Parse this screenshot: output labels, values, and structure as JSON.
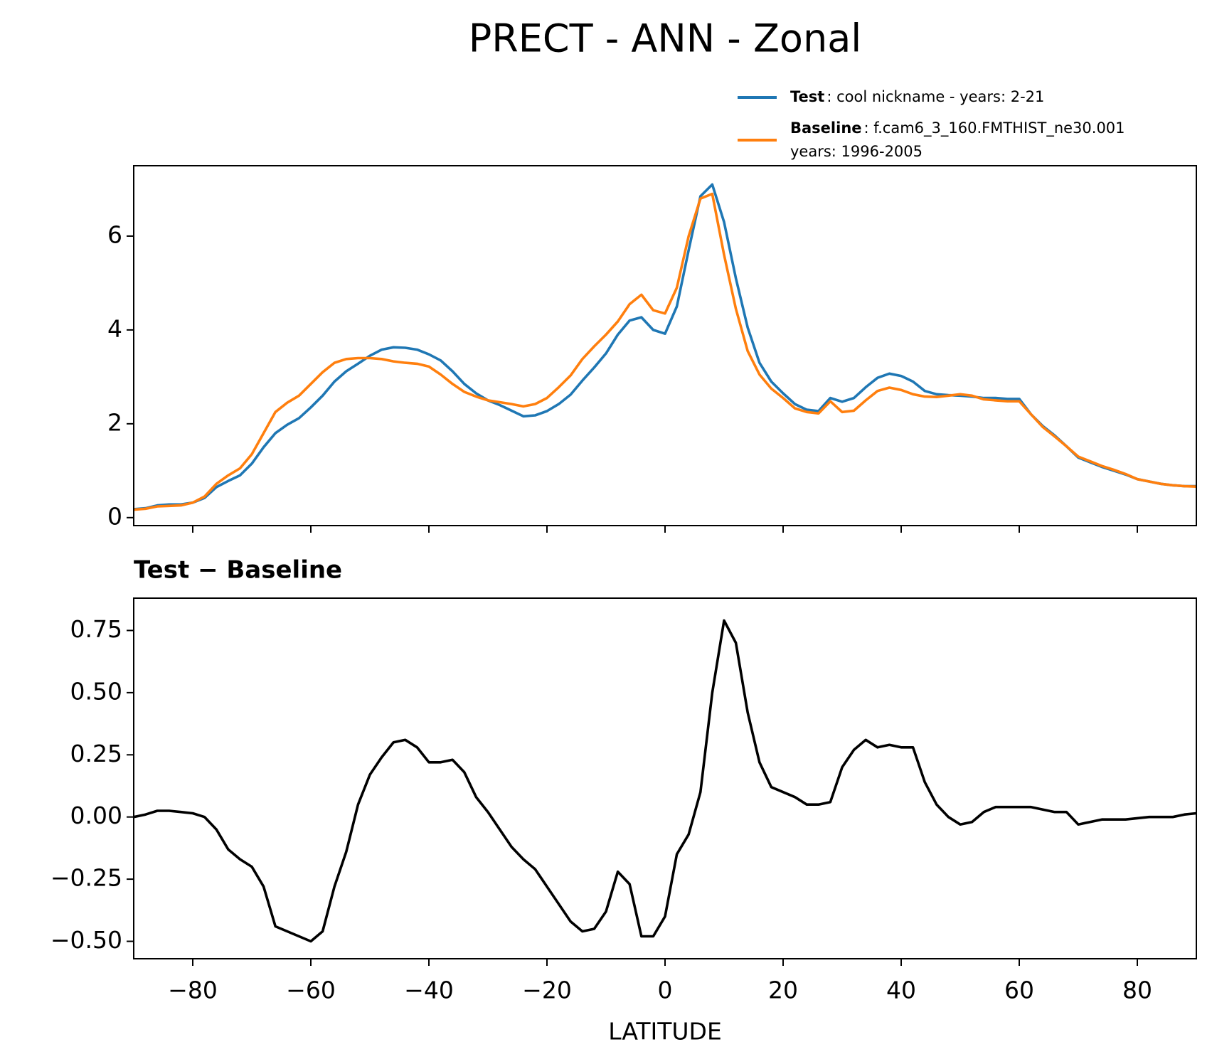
{
  "chart_data": [
    {
      "type": "line",
      "title": "PRECT - ANN - Zonal",
      "x": [
        -90,
        -88,
        -86,
        -84,
        -82,
        -80,
        -78,
        -76,
        -74,
        -72,
        -70,
        -68,
        -66,
        -64,
        -62,
        -60,
        -58,
        -56,
        -54,
        -52,
        -50,
        -48,
        -46,
        -44,
        -42,
        -40,
        -38,
        -36,
        -34,
        -32,
        -30,
        -28,
        -26,
        -24,
        -22,
        -20,
        -18,
        -16,
        -14,
        -12,
        -10,
        -8,
        -6,
        -4,
        -2,
        0,
        2,
        4,
        6,
        8,
        10,
        12,
        14,
        16,
        18,
        20,
        22,
        24,
        26,
        28,
        30,
        32,
        34,
        36,
        38,
        40,
        42,
        44,
        46,
        48,
        50,
        52,
        54,
        56,
        58,
        60,
        62,
        64,
        66,
        68,
        70,
        72,
        74,
        76,
        78,
        80,
        82,
        84,
        86,
        88,
        90
      ],
      "series": [
        {
          "name": "Test",
          "description": ": cool nickname - years: 2-21",
          "color": "#1f77b4",
          "values": [
            0.18,
            0.2,
            0.26,
            0.28,
            0.28,
            0.32,
            0.42,
            0.65,
            0.78,
            0.9,
            1.15,
            1.5,
            1.8,
            1.98,
            2.12,
            2.35,
            2.6,
            2.9,
            3.12,
            3.28,
            3.45,
            3.58,
            3.63,
            3.62,
            3.58,
            3.48,
            3.35,
            3.12,
            2.85,
            2.65,
            2.5,
            2.4,
            2.28,
            2.16,
            2.18,
            2.27,
            2.42,
            2.62,
            2.92,
            3.2,
            3.5,
            3.9,
            4.2,
            4.27,
            4.0,
            3.92,
            4.5,
            5.7,
            6.85,
            7.1,
            6.3,
            5.1,
            4.05,
            3.3,
            2.9,
            2.65,
            2.42,
            2.3,
            2.27,
            2.55,
            2.47,
            2.55,
            2.78,
            2.98,
            3.07,
            3.02,
            2.9,
            2.7,
            2.63,
            2.61,
            2.6,
            2.58,
            2.55,
            2.55,
            2.53,
            2.53,
            2.2,
            1.95,
            1.75,
            1.52,
            1.28,
            1.18,
            1.08,
            1.0,
            0.92,
            0.82,
            0.77,
            0.72,
            0.69,
            0.67,
            0.67
          ]
        },
        {
          "name": "Baseline",
          "description": [
            ": f.cam6_3_160.FMTHIST_ne30.001",
            "years: 1996-2005"
          ],
          "color": "#ff7f0e",
          "values": [
            0.17,
            0.19,
            0.24,
            0.25,
            0.26,
            0.32,
            0.45,
            0.72,
            0.9,
            1.05,
            1.35,
            1.8,
            2.25,
            2.45,
            2.6,
            2.85,
            3.1,
            3.3,
            3.38,
            3.4,
            3.4,
            3.38,
            3.33,
            3.3,
            3.28,
            3.22,
            3.05,
            2.85,
            2.68,
            2.58,
            2.5,
            2.46,
            2.42,
            2.37,
            2.42,
            2.55,
            2.78,
            3.03,
            3.38,
            3.65,
            3.9,
            4.18,
            4.55,
            4.75,
            4.42,
            4.35,
            4.9,
            6.0,
            6.8,
            6.9,
            5.6,
            4.45,
            3.55,
            3.05,
            2.75,
            2.55,
            2.33,
            2.25,
            2.22,
            2.48,
            2.25,
            2.28,
            2.5,
            2.7,
            2.77,
            2.72,
            2.63,
            2.58,
            2.57,
            2.6,
            2.63,
            2.6,
            2.52,
            2.5,
            2.48,
            2.48,
            2.2,
            1.93,
            1.73,
            1.52,
            1.3,
            1.2,
            1.1,
            1.02,
            0.93,
            0.82,
            0.77,
            0.72,
            0.69,
            0.67,
            0.66
          ]
        }
      ],
      "xlim": [
        -90,
        90
      ],
      "xticks": [
        -80,
        -60,
        -40,
        -20,
        0,
        20,
        40,
        60,
        80
      ],
      "ylim": [
        -0.17,
        7.5
      ],
      "yticks": [
        0,
        2,
        4,
        6
      ],
      "legend": "upper right"
    },
    {
      "type": "line",
      "title": "Test − Baseline",
      "xlabel": "LATITUDE",
      "x": [
        -90,
        -88,
        -86,
        -84,
        -82,
        -80,
        -78,
        -76,
        -74,
        -72,
        -70,
        -68,
        -66,
        -64,
        -62,
        -60,
        -58,
        -56,
        -54,
        -52,
        -50,
        -48,
        -46,
        -44,
        -42,
        -40,
        -38,
        -36,
        -34,
        -32,
        -30,
        -28,
        -26,
        -24,
        -22,
        -20,
        -18,
        -16,
        -14,
        -12,
        -10,
        -8,
        -6,
        -4,
        -2,
        0,
        2,
        4,
        6,
        8,
        10,
        12,
        14,
        16,
        18,
        20,
        22,
        24,
        26,
        28,
        30,
        32,
        34,
        36,
        38,
        40,
        42,
        44,
        46,
        48,
        50,
        52,
        54,
        56,
        58,
        60,
        62,
        64,
        66,
        68,
        70,
        72,
        74,
        76,
        78,
        80,
        82,
        84,
        86,
        88,
        90
      ],
      "series": [
        {
          "color": "#000000",
          "values": [
            0.0,
            0.01,
            0.025,
            0.025,
            0.02,
            0.015,
            0.0,
            -0.05,
            -0.13,
            -0.17,
            -0.2,
            -0.28,
            -0.44,
            -0.46,
            -0.48,
            -0.5,
            -0.46,
            -0.28,
            -0.14,
            0.05,
            0.17,
            0.24,
            0.3,
            0.31,
            0.28,
            0.22,
            0.22,
            0.23,
            0.18,
            0.08,
            0.02,
            -0.05,
            -0.12,
            -0.17,
            -0.21,
            -0.28,
            -0.35,
            -0.42,
            -0.46,
            -0.45,
            -0.38,
            -0.22,
            -0.27,
            -0.48,
            -0.48,
            -0.4,
            -0.15,
            -0.07,
            0.1,
            0.5,
            0.79,
            0.7,
            0.42,
            0.22,
            0.12,
            0.1,
            0.08,
            0.05,
            0.05,
            0.06,
            0.2,
            0.27,
            0.31,
            0.28,
            0.29,
            0.28,
            0.28,
            0.14,
            0.05,
            0.0,
            -0.03,
            -0.02,
            0.02,
            0.04,
            0.04,
            0.04,
            0.04,
            0.03,
            0.02,
            0.02,
            -0.03,
            -0.02,
            -0.01,
            -0.01,
            -0.01,
            -0.005,
            0.0,
            0.0,
            0.0,
            0.01,
            0.015
          ]
        }
      ],
      "xlim": [
        -90,
        90
      ],
      "xticks": [
        {
          "value": -80,
          "label": "−80"
        },
        {
          "value": -60,
          "label": "−60"
        },
        {
          "value": -40,
          "label": "−40"
        },
        {
          "value": -20,
          "label": "−20"
        },
        0,
        20,
        40,
        60,
        80
      ],
      "ylim": [
        -0.57,
        0.88
      ],
      "yticks": [
        {
          "value": -0.5,
          "label": "−0.50"
        },
        {
          "value": -0.25,
          "label": "−0.25"
        },
        {
          "value": 0,
          "label": "0.00"
        },
        0.25,
        {
          "value": 0.5,
          "label": "0.50"
        },
        0.75
      ]
    }
  ]
}
